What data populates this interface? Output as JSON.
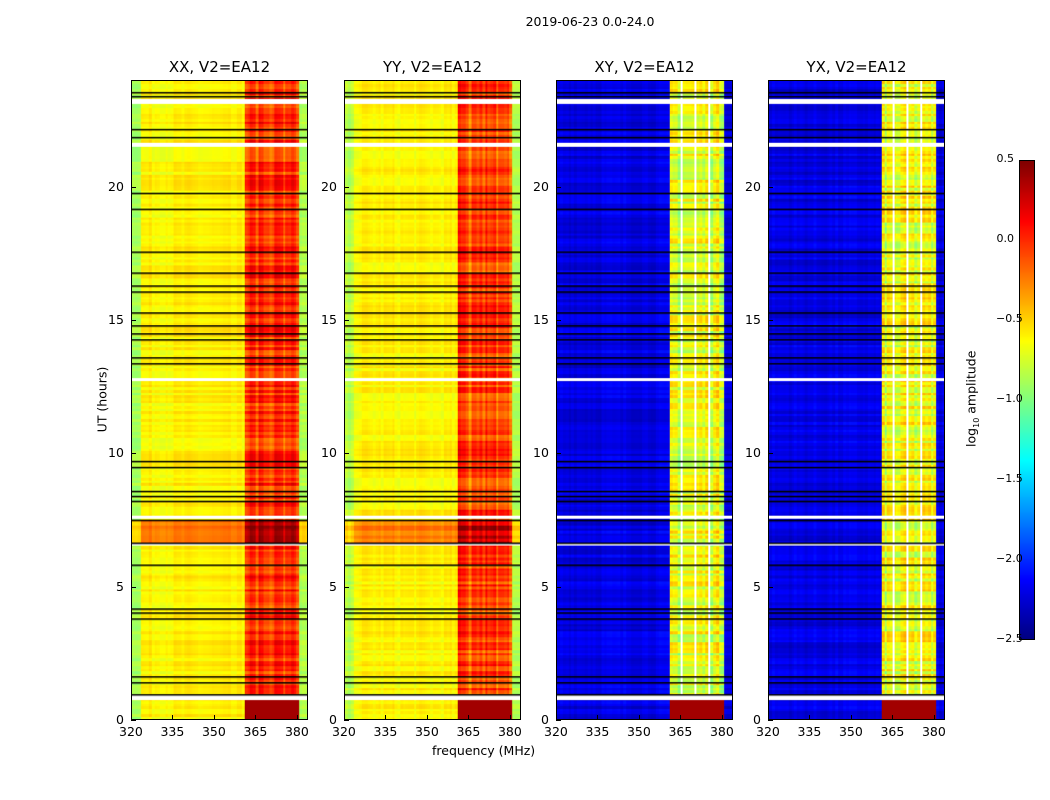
{
  "chart_data": {
    "type": "heatmap",
    "title": "2019-06-23 0.0-24.0",
    "xlabel": "frequency (MHz)",
    "ylabel": "UT (hours)",
    "xlim": [
      320,
      384
    ],
    "ylim": [
      0,
      24
    ],
    "xticks": [
      "320",
      "335",
      "350",
      "365",
      "380"
    ],
    "xtick_values": [
      320,
      335,
      350,
      365,
      380
    ],
    "yticks": [
      "0",
      "5",
      "10",
      "15",
      "20"
    ],
    "ytick_values": [
      0,
      5,
      10,
      15,
      20
    ],
    "panels": [
      {
        "title": "XX, V2=EA12",
        "kind": "parallel"
      },
      {
        "title": "YY, V2=EA12",
        "kind": "parallel"
      },
      {
        "title": "XY, V2=EA12",
        "kind": "cross"
      },
      {
        "title": "YX, V2=EA12",
        "kind": "cross"
      }
    ],
    "colorbar": {
      "label": "log10 amplitude",
      "label_main": "log",
      "label_sub": "10",
      "label_rest": " amplitude",
      "colormap": "jet",
      "range": [
        -2.5,
        0.5
      ],
      "ticks": [
        "0.5",
        "0.0",
        "−0.5",
        "−1.0",
        "−1.5",
        "−2.0",
        "−2.5"
      ],
      "tick_values": [
        0.5,
        0,
        -0.5,
        -1,
        -1.5,
        -2,
        -2.5
      ]
    },
    "levels": {
      "parallel_base": -0.6,
      "parallel_band": 0.0,
      "cross_base": -2.3,
      "cross_band": -0.7,
      "band_MHz": [
        361,
        381
      ]
    },
    "flagged_white_hours": [
      [
        0.75,
        0.9
      ],
      [
        12.75,
        12.85
      ],
      [
        21.55,
        21.7
      ],
      [
        23.15,
        23.35
      ],
      [
        7.55,
        7.65
      ],
      [
        6.55,
        6.62
      ]
    ],
    "flag_lines_hours": [
      0.95,
      1.4,
      1.6,
      3.8,
      4.0,
      4.15,
      5.8,
      6.65,
      7.5,
      8.2,
      8.4,
      8.6,
      9.5,
      9.7,
      13.4,
      13.6,
      14.3,
      14.5,
      14.8,
      15.3,
      16.1,
      16.3,
      16.8,
      17.6,
      19.2,
      19.8,
      21.9,
      22.2,
      23.45,
      23.6
    ]
  }
}
